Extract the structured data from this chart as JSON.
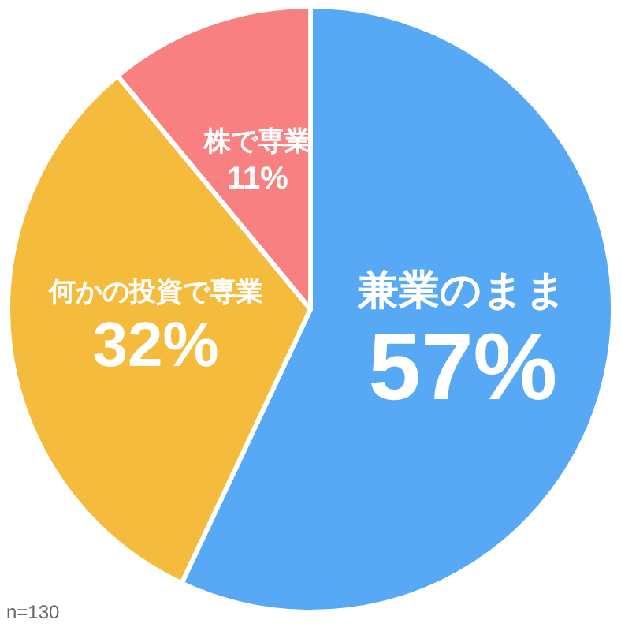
{
  "chart_data": {
    "type": "pie",
    "categories": [
      "兼業のまま",
      "何かの投資で専業",
      "株で専業"
    ],
    "values": [
      57,
      32,
      11
    ],
    "colors": [
      "#57a9f5",
      "#f5bb3c",
      "#f88080"
    ],
    "value_labels": [
      "57%",
      "32%",
      "11%"
    ],
    "legend": false,
    "annotations": [
      "n=130"
    ]
  }
}
